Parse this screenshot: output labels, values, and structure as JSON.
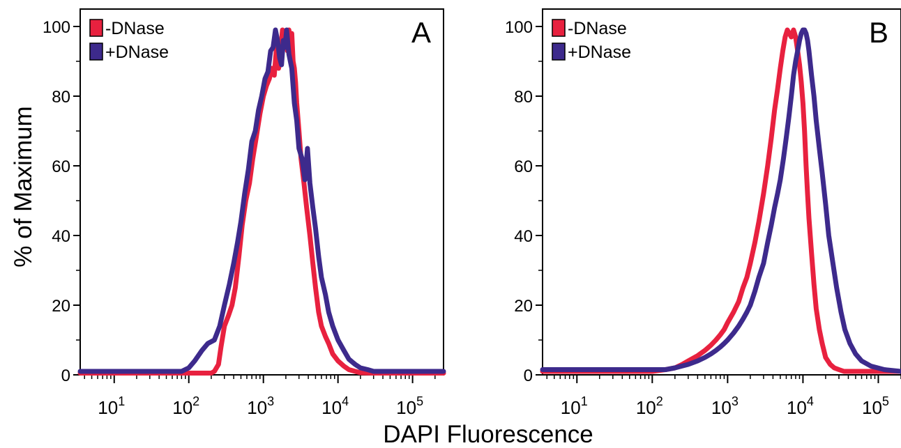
{
  "figure": {
    "ylabel": "% of Maximum",
    "xlabel": "DAPI Fluorescence"
  },
  "chart_data": [
    {
      "type": "line",
      "panel_label": "A",
      "x_scale": "log",
      "xlim": [
        3.5,
        260000
      ],
      "ylim": [
        0,
        100
      ],
      "yticks": [
        "0",
        "20",
        "40",
        "60",
        "80",
        "100"
      ],
      "xticks": [
        "10^1",
        "10^2",
        "10^3",
        "10^4",
        "10^5"
      ],
      "legend": {
        "position": "top-left"
      },
      "series": [
        {
          "name": "-DNase",
          "color": "#e8213f",
          "x": [
            3.5,
            200,
            220,
            250,
            270,
            300,
            340,
            380,
            420,
            470,
            520,
            580,
            650,
            720,
            800,
            900,
            1000,
            1100,
            1200,
            1300,
            1400,
            1500,
            1600,
            1700,
            1800,
            1900,
            2000,
            2100,
            2200,
            2300,
            2400,
            2500,
            2600,
            2700,
            2800,
            3000,
            3200,
            3500,
            3800,
            4200,
            4600,
            5000,
            5500,
            6000,
            6800,
            7500,
            8500,
            10000,
            12000,
            14000,
            17000,
            20000,
            30000,
            50000,
            260000
          ],
          "y": [
            0.5,
            0.5,
            1,
            3,
            8,
            14,
            17,
            20,
            25,
            34,
            43,
            50,
            55,
            62,
            68,
            75,
            80,
            83,
            85,
            88,
            86,
            94,
            88,
            92,
            99,
            95,
            97,
            93,
            99,
            93,
            98,
            90,
            88,
            84,
            78,
            70,
            62,
            55,
            48,
            40,
            32,
            25,
            18,
            14,
            11,
            9,
            6,
            4,
            2.5,
            1.5,
            1,
            0.6,
            0.5,
            0.5,
            0.5
          ]
        },
        {
          "name": "+DNase",
          "color": "#3d2a8c",
          "x": [
            3.5,
            80,
            100,
            120,
            150,
            180,
            220,
            260,
            300,
            350,
            400,
            450,
            500,
            560,
            630,
            700,
            780,
            860,
            950,
            1050,
            1150,
            1250,
            1350,
            1450,
            1550,
            1650,
            1750,
            1850,
            1950,
            2050,
            2200,
            2400,
            2600,
            2800,
            3000,
            3300,
            3600,
            3900,
            4200,
            4600,
            5000,
            5500,
            6000,
            6800,
            7500,
            8500,
            10000,
            12000,
            14000,
            17000,
            20000,
            25000,
            30000,
            50000,
            260000
          ],
          "y": [
            1,
            1,
            2,
            4,
            7,
            9,
            10,
            14,
            20,
            26,
            32,
            38,
            44,
            52,
            59,
            67,
            70,
            76,
            80,
            85,
            87,
            93,
            94,
            99,
            96,
            91,
            89,
            96,
            94,
            99,
            92,
            88,
            78,
            73,
            65,
            62,
            56,
            65,
            55,
            48,
            42,
            34,
            28,
            23,
            18,
            14,
            10,
            7,
            4.5,
            3,
            2,
            1.5,
            1,
            1,
            1
          ]
        }
      ]
    },
    {
      "type": "line",
      "panel_label": "B",
      "x_scale": "log",
      "xlim": [
        3.5,
        200000
      ],
      "ylim": [
        0,
        100
      ],
      "yticks": [
        "0",
        "20",
        "40",
        "60",
        "80",
        "100"
      ],
      "xticks": [
        "10^1",
        "10^2",
        "10^3",
        "10^4",
        "10^5"
      ],
      "legend": {
        "position": "top-left"
      },
      "series": [
        {
          "name": "-DNase",
          "color": "#e8213f",
          "x": [
            3.5,
            100,
            150,
            200,
            250,
            300,
            400,
            500,
            600,
            700,
            800,
            900,
            1000,
            1200,
            1400,
            1600,
            1800,
            2000,
            2300,
            2600,
            3000,
            3400,
            3800,
            4200,
            4600,
            5000,
            5400,
            5800,
            6200,
            6600,
            7000,
            7500,
            8000,
            8500,
            9000,
            9500,
            10000,
            10500,
            11000,
            11500,
            12000,
            13000,
            14000,
            15000,
            16500,
            18000,
            20000,
            23000,
            26000,
            30000,
            35000,
            40000,
            50000,
            70000,
            200000
          ],
          "y": [
            1,
            1,
            1.5,
            2,
            3,
            4,
            5.5,
            7,
            8.5,
            10,
            11.5,
            13,
            15,
            18,
            21,
            25,
            28,
            32,
            38,
            44,
            52,
            60,
            68,
            76,
            82,
            88,
            93,
            97,
            99,
            98,
            97,
            99,
            97,
            93,
            89,
            84,
            78,
            70,
            60,
            52,
            45,
            35,
            26,
            19,
            13,
            9,
            5,
            3,
            2,
            1.5,
            1,
            1,
            1,
            1,
            1
          ]
        },
        {
          "name": "+DNase",
          "color": "#3d2a8c",
          "x": [
            3.5,
            150,
            200,
            300,
            400,
            500,
            600,
            700,
            800,
            900,
            1000,
            1200,
            1400,
            1600,
            1800,
            2000,
            2300,
            2600,
            3000,
            3400,
            3800,
            4200,
            4600,
            5000,
            5500,
            6000,
            6500,
            7000,
            7500,
            8000,
            8500,
            9000,
            9500,
            10000,
            10500,
            11000,
            11500,
            12000,
            13000,
            14000,
            15000,
            16500,
            18000,
            20000,
            22000,
            25000,
            28000,
            32000,
            36000,
            42000,
            50000,
            60000,
            80000,
            120000,
            200000
          ],
          "y": [
            1.5,
            1.5,
            2,
            3,
            4,
            5,
            6,
            7,
            8,
            9,
            10,
            12,
            14,
            16,
            18,
            20,
            24,
            28,
            32,
            38,
            43,
            48,
            52,
            56,
            62,
            68,
            74,
            80,
            86,
            90,
            93,
            96,
            98,
            99,
            99,
            98,
            96,
            93,
            86,
            80,
            73,
            65,
            58,
            49,
            40,
            32,
            25,
            18,
            13,
            9,
            6,
            4,
            2.5,
            1.5,
            1
          ]
        }
      ]
    }
  ]
}
